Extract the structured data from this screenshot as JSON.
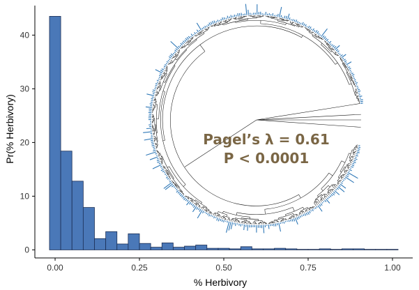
{
  "chart_data": {
    "type": "bar",
    "xlabel": "% Herbivory",
    "ylabel": "Pr(% Herbivory)",
    "x_ticks": [
      "0.00",
      "0.25",
      "0.50",
      "0.75",
      "1.00"
    ],
    "y_ticks": [
      "0",
      "10",
      "20",
      "30",
      "40"
    ],
    "xlim": [
      -0.06,
      1.06
    ],
    "ylim": [
      -1.5,
      45.5
    ],
    "bin_width": 0.0333,
    "bins_x": [
      0.0,
      0.0333,
      0.0667,
      0.1,
      0.1333,
      0.1667,
      0.2,
      0.2333,
      0.2667,
      0.3,
      0.3333,
      0.3667,
      0.4,
      0.4333,
      0.4667,
      0.5,
      0.5333,
      0.5667,
      0.6,
      0.6333,
      0.6667,
      0.7,
      0.7333,
      0.7667,
      0.8,
      0.8333,
      0.8667,
      0.9,
      0.9333,
      0.9667,
      1.0
    ],
    "values": [
      43.5,
      18.4,
      12.8,
      7.9,
      2.1,
      3.4,
      1.1,
      3.0,
      1.2,
      0.5,
      1.3,
      0.5,
      0.7,
      0.9,
      0.3,
      0.3,
      0.2,
      0.6,
      0.2,
      0.2,
      0.3,
      0.2,
      0.1,
      0.1,
      0.2,
      0.1,
      0.2,
      0.2,
      0.1,
      0.1,
      0.1
    ],
    "bar_color": "#4a78b8",
    "bar_edge_color": "#1c2f55",
    "grid": false,
    "annotation": {
      "line1": "Pagel’s λ = 0.61",
      "line2": "P < 0.0001",
      "color": "#7a6645"
    },
    "inset": {
      "type": "circular-phylogeny",
      "branch_color": "#111111",
      "tip_bar_color": "#2f78b7"
    }
  }
}
